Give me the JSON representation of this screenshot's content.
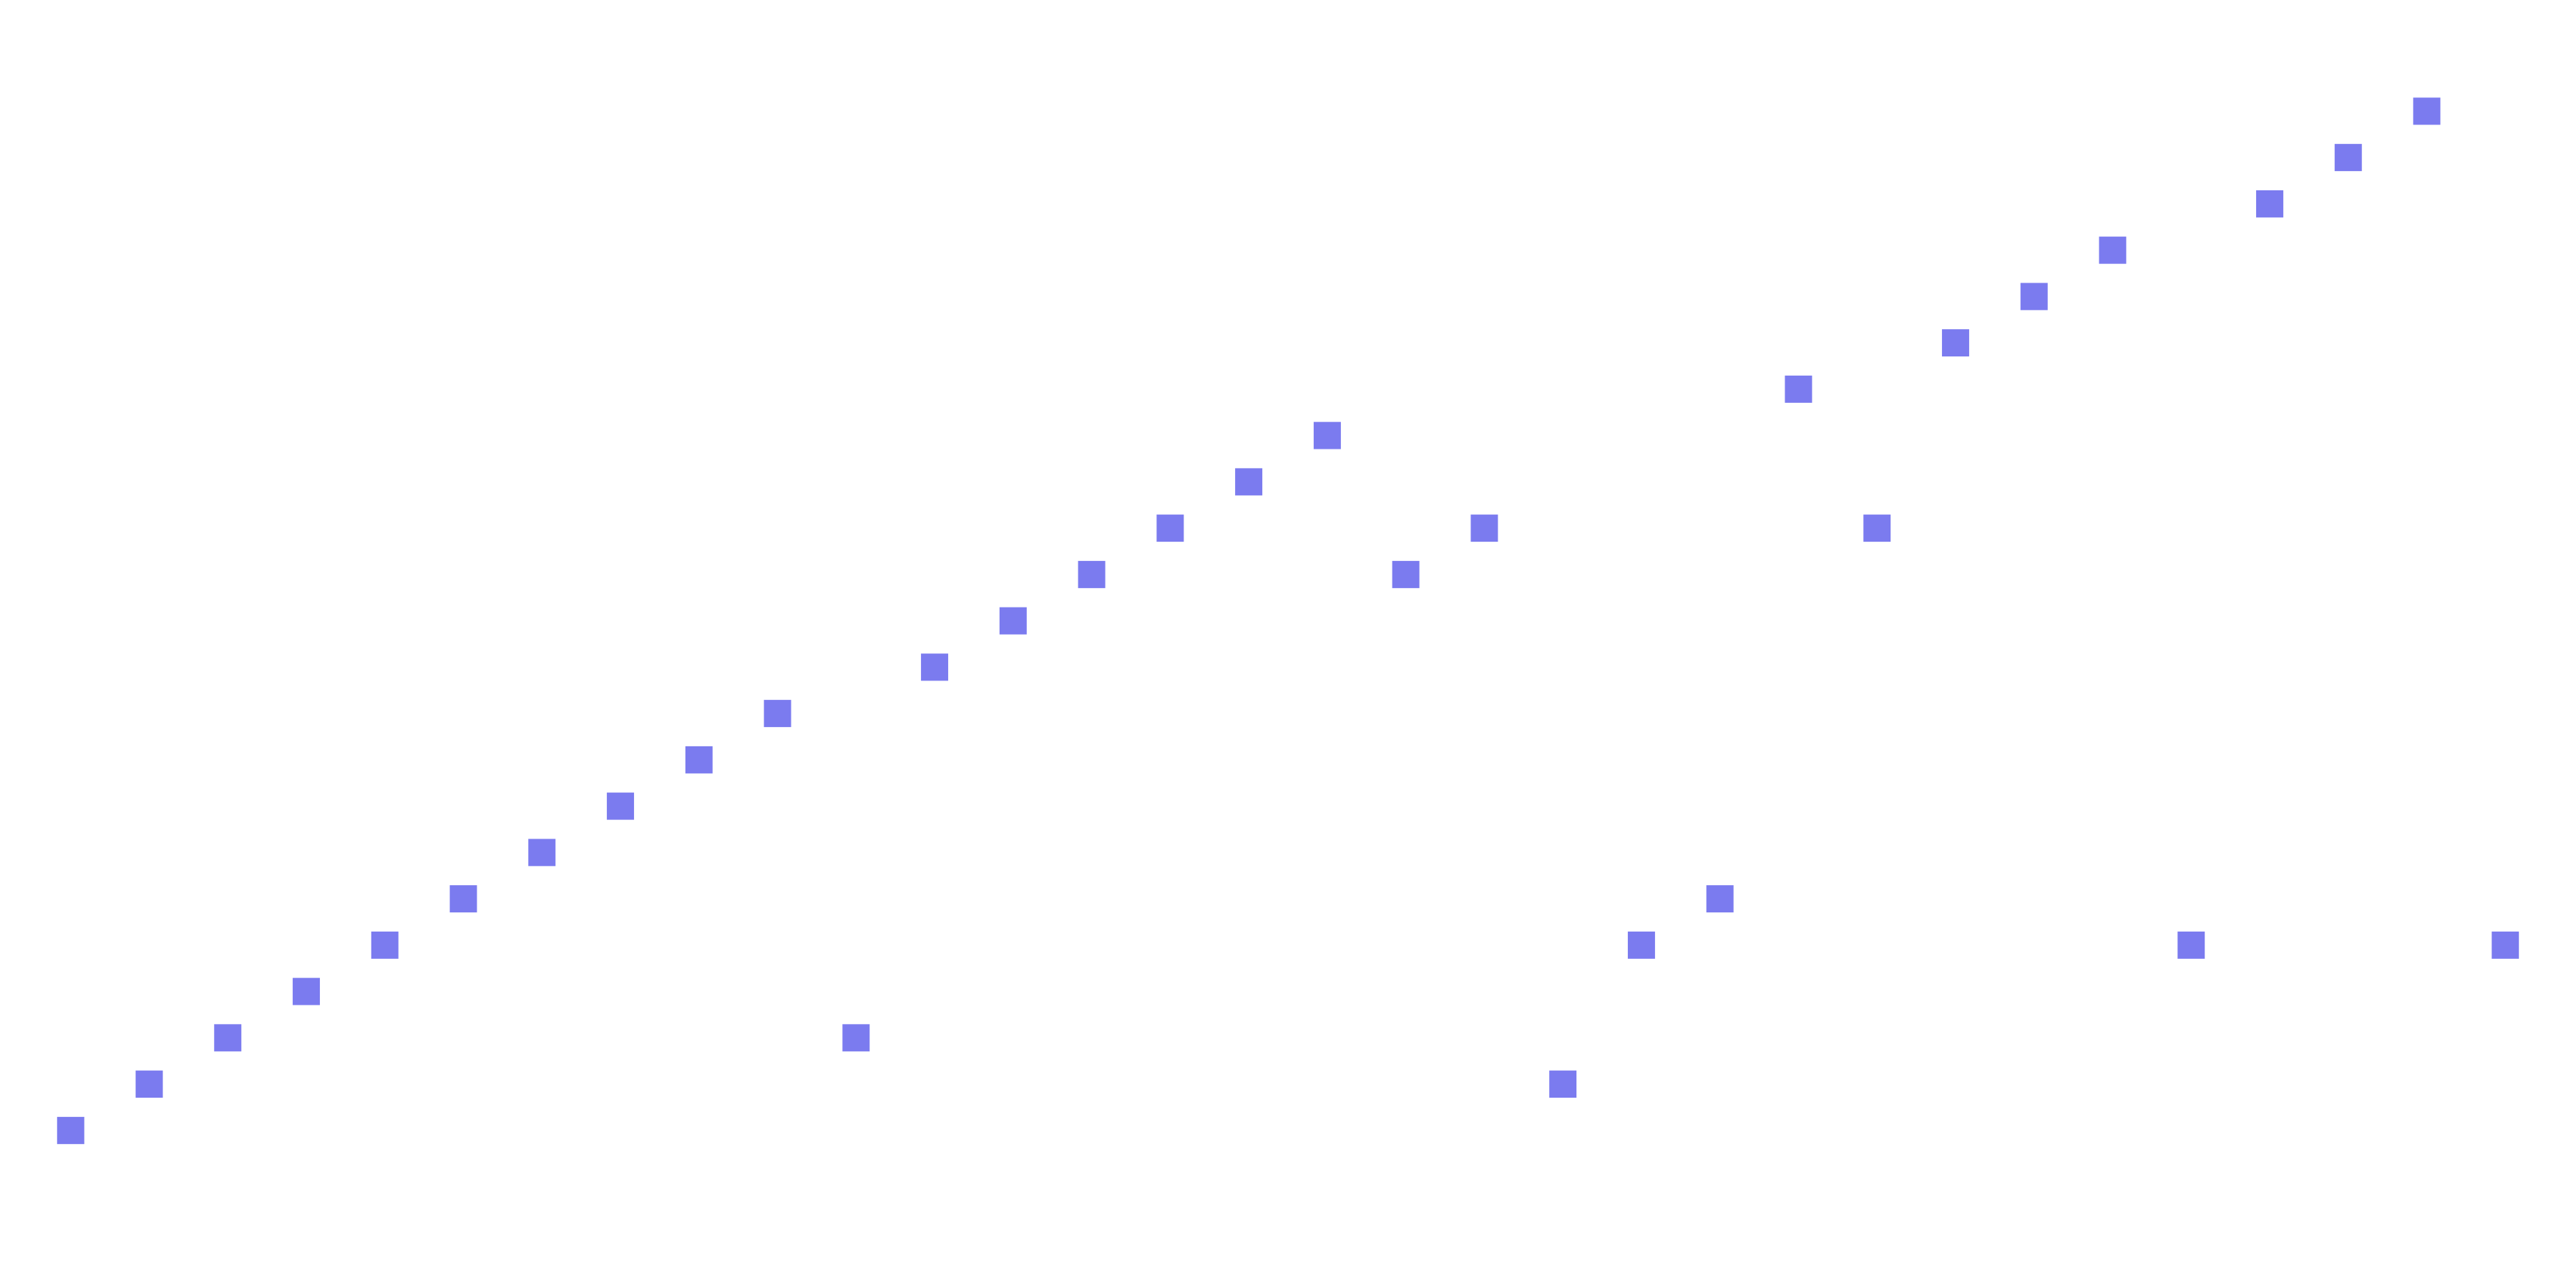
{
  "chart_data": {
    "type": "scatter",
    "marker": "square",
    "colors": {
      "background": "#ffffff",
      "marker": "#7b7bef"
    },
    "grid": false,
    "axes_visible": false,
    "xlim": [
      0.1,
      32.9
    ],
    "ylim": [
      -3.4,
      24.4
    ],
    "series": [
      {
        "x": [
          1,
          2,
          3,
          4,
          5,
          6,
          7,
          8,
          9,
          10,
          11,
          12,
          13,
          14,
          15,
          16,
          17,
          18,
          19,
          20,
          21,
          22,
          23,
          24,
          25,
          26,
          27,
          28,
          29,
          30,
          31,
          32
        ],
        "y": [
          0,
          1,
          2,
          3,
          4,
          5,
          6,
          7,
          8,
          9,
          2,
          10,
          11,
          12,
          13,
          14,
          15,
          12,
          13,
          1,
          4,
          5,
          16,
          13,
          17,
          18,
          19,
          4,
          20,
          21,
          22,
          4
        ]
      }
    ]
  }
}
